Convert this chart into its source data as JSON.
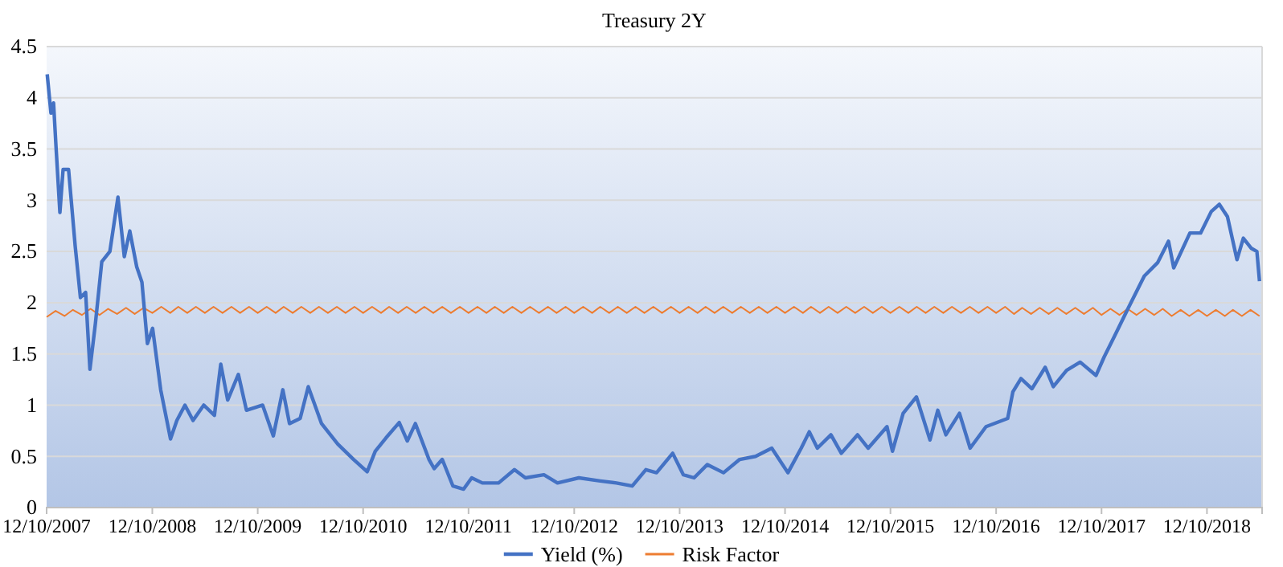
{
  "chart_data": {
    "type": "line",
    "title": "Treasury 2Y",
    "xlim": [
      "2007-12-10",
      "2019-06-19"
    ],
    "xticks": [
      {
        "value": "2007-12-10",
        "label": "12/10/2007"
      },
      {
        "value": "2008-12-10",
        "label": "12/10/2008"
      },
      {
        "value": "2009-12-10",
        "label": "12/10/2009"
      },
      {
        "value": "2010-12-10",
        "label": "12/10/2010"
      },
      {
        "value": "2011-12-10",
        "label": "12/10/2011"
      },
      {
        "value": "2012-12-10",
        "label": "12/10/2012"
      },
      {
        "value": "2013-12-10",
        "label": "12/10/2013"
      },
      {
        "value": "2014-12-10",
        "label": "12/10/2014"
      },
      {
        "value": "2015-12-10",
        "label": "12/10/2015"
      },
      {
        "value": "2016-12-10",
        "label": "12/10/2016"
      },
      {
        "value": "2017-12-10",
        "label": "12/10/2017"
      },
      {
        "value": "2018-12-10",
        "label": "12/10/2018"
      }
    ],
    "ylim": [
      0,
      4.5
    ],
    "yticks": [
      0,
      0.5,
      1,
      1.5,
      2,
      2.5,
      3,
      3.5,
      4,
      4.5
    ],
    "grid": "y",
    "legend": "bottom",
    "marker": "none",
    "line_style": "solid",
    "series": [
      {
        "name": "Yield (%)",
        "color": "#4472c4",
        "x": [
          "2007-12-12",
          "2007-12-25",
          "2008-01-03",
          "2008-01-12",
          "2008-01-25",
          "2008-02-05",
          "2008-02-24",
          "2008-03-18",
          "2008-04-05",
          "2008-04-23",
          "2008-05-08",
          "2008-05-27",
          "2008-06-18",
          "2008-07-16",
          "2008-08-13",
          "2008-09-04",
          "2008-09-23",
          "2008-10-17",
          "2008-11-04",
          "2008-11-23",
          "2008-12-11",
          "2009-01-08",
          "2009-02-11",
          "2009-03-05",
          "2009-04-02",
          "2009-04-30",
          "2009-06-06",
          "2009-07-13",
          "2009-08-04",
          "2009-08-28",
          "2009-10-04",
          "2009-11-01",
          "2009-12-27",
          "2010-02-02",
          "2010-03-07",
          "2010-03-30",
          "2010-05-06",
          "2010-06-03",
          "2010-07-19",
          "2010-09-13",
          "2010-11-07",
          "2010-12-24",
          "2011-01-21",
          "2011-02-27",
          "2011-04-14",
          "2011-05-12",
          "2011-06-09",
          "2011-07-26",
          "2011-08-13",
          "2011-09-10",
          "2011-10-17",
          "2011-11-23",
          "2011-12-21",
          "2012-01-27",
          "2012-03-23",
          "2012-05-17",
          "2012-06-24",
          "2012-08-27",
          "2012-10-13",
          "2012-12-26",
          "2013-03-10",
          "2013-05-05",
          "2013-06-29",
          "2013-08-15",
          "2013-09-21",
          "2013-11-16",
          "2013-12-23",
          "2014-01-29",
          "2014-03-16",
          "2014-05-11",
          "2014-07-06",
          "2014-08-30",
          "2014-10-25",
          "2014-12-20",
          "2015-02-04",
          "2015-03-04",
          "2015-04-01",
          "2015-05-18",
          "2015-06-23",
          "2015-08-18",
          "2015-09-24",
          "2015-11-28",
          "2015-12-17",
          "2016-01-23",
          "2016-03-09",
          "2016-04-25",
          "2016-05-22",
          "2016-06-19",
          "2016-08-05",
          "2016-09-11",
          "2016-11-05",
          "2017-01-19",
          "2017-02-06",
          "2017-03-06",
          "2017-04-13",
          "2017-05-29",
          "2017-06-26",
          "2017-08-11",
          "2017-09-27",
          "2017-11-21",
          "2017-12-19",
          "2018-01-25",
          "2018-03-13",
          "2018-05-07",
          "2018-06-22",
          "2018-07-30",
          "2018-08-17",
          "2018-10-12",
          "2018-11-18",
          "2018-12-25",
          "2019-01-22",
          "2019-02-19",
          "2019-03-24",
          "2019-04-15",
          "2019-05-13",
          "2019-06-01",
          "2019-06-10"
        ],
        "values": [
          4.23,
          3.85,
          3.95,
          3.5,
          2.88,
          3.3,
          3.3,
          2.55,
          2.05,
          2.1,
          1.35,
          1.8,
          2.4,
          2.5,
          3.03,
          2.45,
          2.7,
          2.35,
          2.2,
          1.6,
          1.75,
          1.15,
          0.67,
          0.85,
          1.0,
          0.85,
          1.0,
          0.9,
          1.4,
          1.05,
          1.3,
          0.95,
          1.0,
          0.7,
          1.15,
          0.82,
          0.87,
          1.18,
          0.82,
          0.62,
          0.47,
          0.35,
          0.55,
          0.68,
          0.83,
          0.65,
          0.82,
          0.47,
          0.38,
          0.47,
          0.21,
          0.18,
          0.29,
          0.24,
          0.24,
          0.37,
          0.29,
          0.32,
          0.24,
          0.29,
          0.26,
          0.24,
          0.21,
          0.37,
          0.34,
          0.53,
          0.32,
          0.29,
          0.42,
          0.34,
          0.47,
          0.5,
          0.58,
          0.34,
          0.58,
          0.74,
          0.58,
          0.71,
          0.53,
          0.71,
          0.58,
          0.79,
          0.55,
          0.92,
          1.08,
          0.66,
          0.95,
          0.71,
          0.92,
          0.58,
          0.79,
          0.87,
          1.13,
          1.26,
          1.16,
          1.37,
          1.18,
          1.34,
          1.42,
          1.29,
          1.47,
          1.68,
          1.95,
          2.26,
          2.39,
          2.6,
          2.34,
          2.68,
          2.68,
          2.89,
          2.96,
          2.84,
          2.42,
          2.63,
          2.53,
          2.5,
          2.21
        ]
      },
      {
        "name": "Risk Factor",
        "color": "#ed7d31",
        "x": [
          "2007-12-10",
          "2008-01-10",
          "2008-02-10",
          "2008-03-10",
          "2008-04-10",
          "2008-05-10",
          "2008-06-10",
          "2008-07-10",
          "2008-08-10",
          "2008-09-10",
          "2008-10-10",
          "2008-11-10",
          "2008-12-10",
          "2009-01-10",
          "2009-02-10",
          "2009-03-10",
          "2009-04-10",
          "2009-05-10",
          "2009-06-10",
          "2009-07-10",
          "2009-08-10",
          "2009-09-10",
          "2009-10-10",
          "2009-11-10",
          "2009-12-10",
          "2010-01-10",
          "2010-02-10",
          "2010-03-10",
          "2010-04-10",
          "2010-05-10",
          "2010-06-10",
          "2010-07-10",
          "2010-08-10",
          "2010-09-10",
          "2010-10-10",
          "2010-11-10",
          "2010-12-10",
          "2011-01-10",
          "2011-02-10",
          "2011-03-10",
          "2011-04-10",
          "2011-05-10",
          "2011-06-10",
          "2011-07-10",
          "2011-08-10",
          "2011-09-10",
          "2011-10-10",
          "2011-11-10",
          "2011-12-10",
          "2012-01-10",
          "2012-02-10",
          "2012-03-10",
          "2012-04-10",
          "2012-05-10",
          "2012-06-10",
          "2012-07-10",
          "2012-08-10",
          "2012-09-10",
          "2012-10-10",
          "2012-11-10",
          "2012-12-10",
          "2013-01-10",
          "2013-02-10",
          "2013-03-10",
          "2013-04-10",
          "2013-05-10",
          "2013-06-10",
          "2013-07-10",
          "2013-08-10",
          "2013-09-10",
          "2013-10-10",
          "2013-11-10",
          "2013-12-10",
          "2014-01-10",
          "2014-02-10",
          "2014-03-10",
          "2014-04-10",
          "2014-05-10",
          "2014-06-10",
          "2014-07-10",
          "2014-08-10",
          "2014-09-10",
          "2014-10-10",
          "2014-11-10",
          "2014-12-10",
          "2015-01-10",
          "2015-02-10",
          "2015-03-10",
          "2015-04-10",
          "2015-05-10",
          "2015-06-10",
          "2015-07-10",
          "2015-08-10",
          "2015-09-10",
          "2015-10-10",
          "2015-11-10",
          "2015-12-10",
          "2016-01-10",
          "2016-02-10",
          "2016-03-10",
          "2016-04-10",
          "2016-05-10",
          "2016-06-10",
          "2016-07-10",
          "2016-08-10",
          "2016-09-10",
          "2016-10-10",
          "2016-11-10",
          "2016-12-10",
          "2017-01-10",
          "2017-02-10",
          "2017-03-10",
          "2017-04-10",
          "2017-05-10",
          "2017-06-10",
          "2017-07-10",
          "2017-08-10",
          "2017-09-10",
          "2017-10-10",
          "2017-11-10",
          "2017-12-10",
          "2018-01-10",
          "2018-02-10",
          "2018-03-10",
          "2018-04-10",
          "2018-05-10",
          "2018-06-10",
          "2018-07-10",
          "2018-08-10",
          "2018-09-10",
          "2018-10-10",
          "2018-11-10",
          "2018-12-10",
          "2019-01-10",
          "2019-02-10",
          "2019-03-10",
          "2019-04-10",
          "2019-05-10",
          "2019-06-10"
        ],
        "values": [
          1.86,
          1.92,
          1.87,
          1.93,
          1.88,
          1.94,
          1.88,
          1.94,
          1.89,
          1.95,
          1.89,
          1.95,
          1.9,
          1.96,
          1.9,
          1.96,
          1.9,
          1.96,
          1.9,
          1.96,
          1.9,
          1.96,
          1.9,
          1.96,
          1.9,
          1.96,
          1.9,
          1.96,
          1.9,
          1.96,
          1.9,
          1.96,
          1.9,
          1.96,
          1.9,
          1.96,
          1.9,
          1.96,
          1.9,
          1.96,
          1.9,
          1.96,
          1.9,
          1.96,
          1.9,
          1.96,
          1.9,
          1.96,
          1.9,
          1.96,
          1.9,
          1.96,
          1.9,
          1.96,
          1.9,
          1.96,
          1.9,
          1.96,
          1.9,
          1.96,
          1.9,
          1.96,
          1.9,
          1.96,
          1.9,
          1.96,
          1.9,
          1.96,
          1.9,
          1.96,
          1.9,
          1.96,
          1.9,
          1.96,
          1.9,
          1.96,
          1.9,
          1.96,
          1.9,
          1.96,
          1.9,
          1.96,
          1.9,
          1.96,
          1.9,
          1.96,
          1.9,
          1.96,
          1.9,
          1.96,
          1.9,
          1.96,
          1.9,
          1.96,
          1.9,
          1.96,
          1.9,
          1.96,
          1.9,
          1.96,
          1.9,
          1.96,
          1.9,
          1.96,
          1.9,
          1.96,
          1.9,
          1.96,
          1.9,
          1.96,
          1.89,
          1.95,
          1.89,
          1.95,
          1.89,
          1.95,
          1.89,
          1.95,
          1.89,
          1.95,
          1.88,
          1.94,
          1.88,
          1.94,
          1.88,
          1.94,
          1.88,
          1.94,
          1.87,
          1.93,
          1.87,
          1.93,
          1.87,
          1.93,
          1.87,
          1.93,
          1.87,
          1.93,
          1.87
        ]
      }
    ]
  }
}
